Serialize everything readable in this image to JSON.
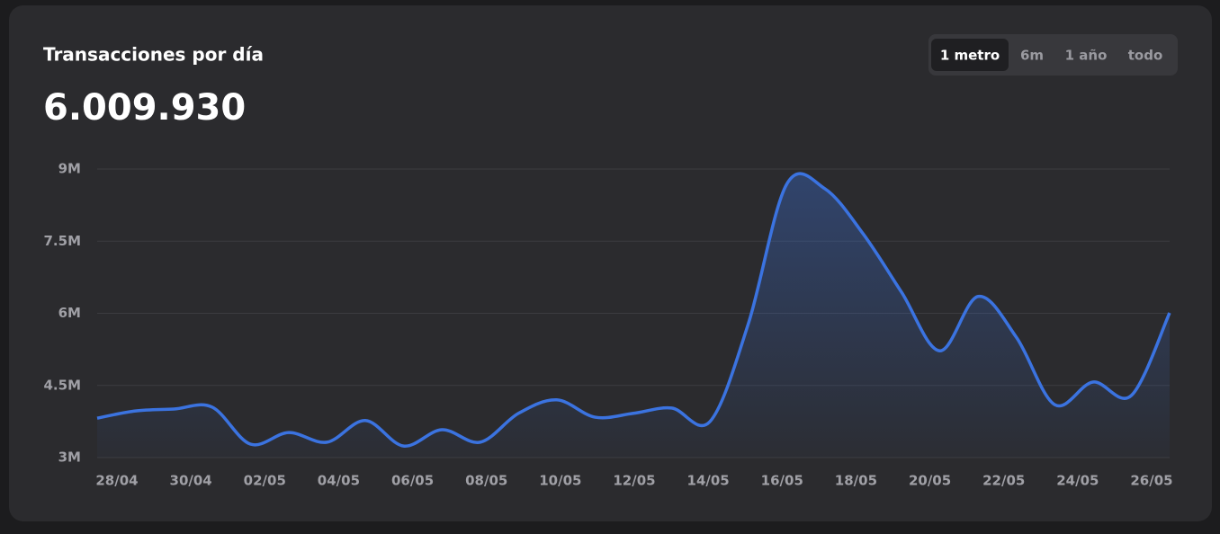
{
  "chart_data": {
    "type": "area",
    "title": "Transacciones por día",
    "headline": "6.009.930",
    "range_options": [
      "1 metro",
      "6m",
      "1 año",
      "todo"
    ],
    "active_range": 0,
    "categories": [
      "28/04",
      null,
      "30/04",
      null,
      "02/05",
      null,
      "04/05",
      null,
      "06/05",
      null,
      "08/05",
      null,
      "10/05",
      null,
      "12/05",
      null,
      "14/05",
      null,
      "16/05",
      null,
      "18/05",
      null,
      "20/05",
      null,
      "22/05",
      null,
      "24/05",
      null,
      "26/05"
    ],
    "values": [
      3820000,
      3970000,
      4010000,
      4050000,
      3280000,
      3520000,
      3320000,
      3770000,
      3240000,
      3580000,
      3320000,
      3920000,
      4200000,
      3840000,
      3920000,
      4030000,
      3750000,
      5780000,
      8680000,
      8590000,
      7650000,
      6440000,
      5220000,
      6350000,
      5500000,
      4100000,
      4570000,
      4290000,
      6009930
    ],
    "color": "#3b73e0",
    "ylim": [
      3000000,
      9000000
    ],
    "yticks": [
      {
        "value": 3000000,
        "label": "3M"
      },
      {
        "value": 4500000,
        "label": "4.5M"
      },
      {
        "value": 6000000,
        "label": "6M"
      },
      {
        "value": 7500000,
        "label": "7.5M"
      },
      {
        "value": 9000000,
        "label": "9M"
      }
    ],
    "grid": true
  }
}
